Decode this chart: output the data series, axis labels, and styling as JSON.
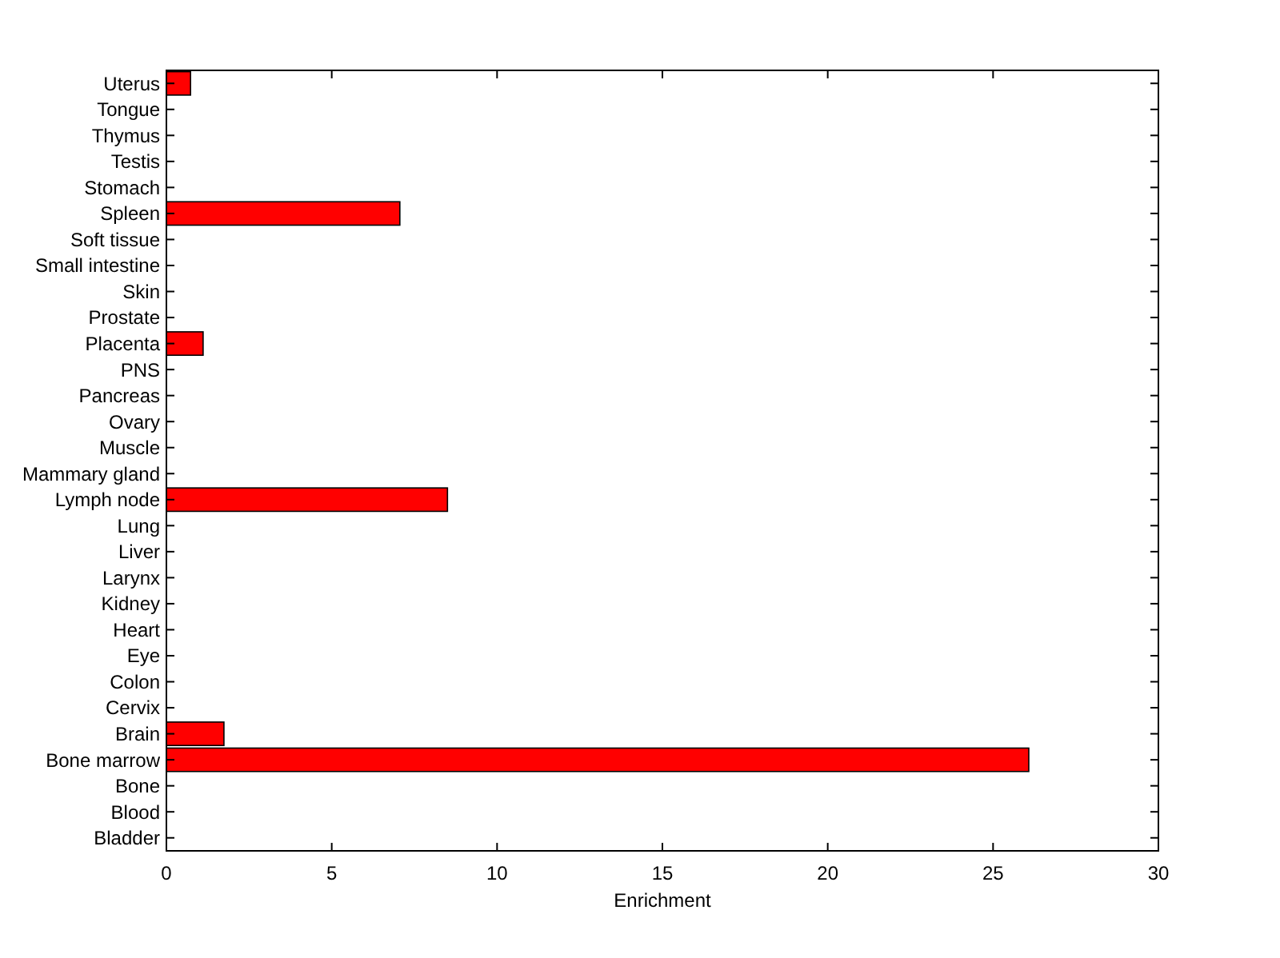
{
  "chart_data": {
    "type": "bar",
    "orientation": "horizontal",
    "xlabel": "Enrichment",
    "categories": [
      "Uterus",
      "Tongue",
      "Thymus",
      "Testis",
      "Stomach",
      "Spleen",
      "Soft tissue",
      "Small intestine",
      "Skin",
      "Prostate",
      "Placenta",
      "PNS",
      "Pancreas",
      "Ovary",
      "Muscle",
      "Mammary gland",
      "Lymph node",
      "Lung",
      "Liver",
      "Larynx",
      "Kidney",
      "Heart",
      "Eye",
      "Colon",
      "Cervix",
      "Brain",
      "Bone marrow",
      "Bone",
      "Blood",
      "Bladder"
    ],
    "values": [
      0.73,
      0,
      0,
      0,
      0,
      7.06,
      0,
      0,
      0,
      0,
      1.11,
      0,
      0,
      0,
      0,
      0,
      8.5,
      0,
      0,
      0,
      0,
      0,
      0,
      0,
      0,
      1.74,
      26.08,
      0,
      0,
      0
    ],
    "color": "#ff0000",
    "xlim": [
      0,
      30
    ],
    "xticks": [
      0,
      5,
      10,
      15,
      20,
      25,
      30
    ],
    "grid": false
  }
}
